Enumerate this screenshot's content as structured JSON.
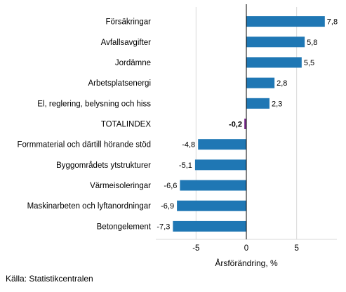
{
  "chart_data": {
    "type": "bar",
    "orientation": "horizontal",
    "categories": [
      "Försäkringar",
      "Avfallsavgifter",
      "Jordämne",
      "Arbetsplatsenergi",
      "El, reglering, belysning och hiss",
      "TOTALINDEX",
      "Formmaterial och därtill hörande stöd",
      "Byggområdets ytstrukturer",
      "Värmeisoleringar",
      "Maskinarbeten och lyftanordningar",
      "Betongelement"
    ],
    "values": [
      7.8,
      5.8,
      5.5,
      2.8,
      2.3,
      -0.2,
      -4.8,
      -5.1,
      -6.6,
      -6.9,
      -7.3
    ],
    "value_labels": [
      "7,8",
      "5,8",
      "5,5",
      "2,8",
      "2,3",
      "-0,2",
      "-4,8",
      "-5,1",
      "-6,6",
      "-6,9",
      "-7,3"
    ],
    "highlight_category": "TOTALINDEX",
    "xlabel": "Årsförändring, %",
    "xlim": [
      -9,
      9
    ],
    "xticks": [
      -5,
      0,
      5
    ],
    "xtick_labels": [
      "-5",
      "0",
      "5"
    ],
    "grid": "vertical lines at ticks",
    "colors": {
      "bar": "#1f77b4",
      "highlight": "#7b2d8e",
      "grid": "#d9d9d9",
      "axis": "#000000"
    }
  },
  "source": "Källa: Statistikcentralen"
}
